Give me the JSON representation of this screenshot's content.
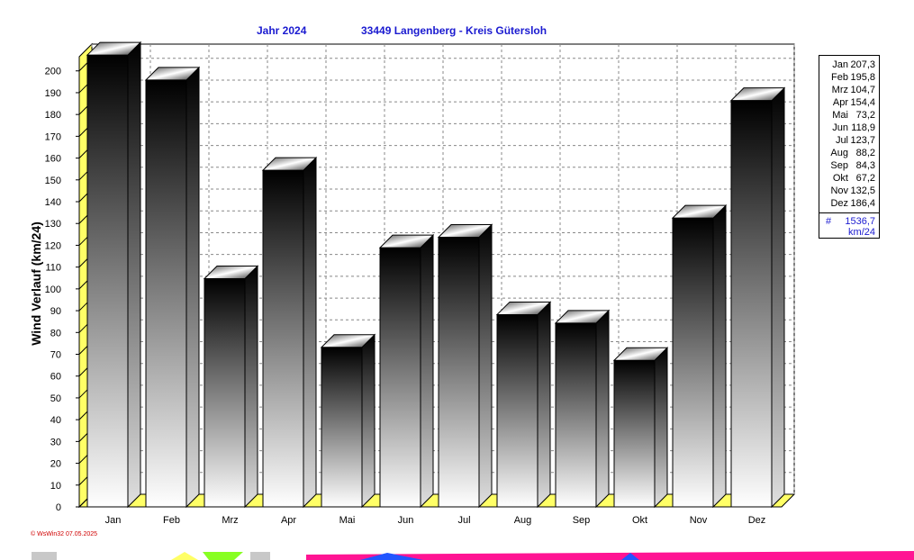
{
  "chart_data": {
    "type": "bar",
    "title_year": "Jahr  2024",
    "title_location": "33449 Langenberg - Kreis Gütersloh",
    "ylabel": "Wind Verlauf  (km/24)",
    "ylim": [
      0,
      200
    ],
    "y_ticks": [
      0,
      10,
      20,
      30,
      40,
      50,
      60,
      70,
      80,
      90,
      100,
      110,
      120,
      130,
      140,
      150,
      160,
      170,
      180,
      190,
      200
    ],
    "categories": [
      "Jan",
      "Feb",
      "Mrz",
      "Apr",
      "Mai",
      "Jun",
      "Jul",
      "Aug",
      "Sep",
      "Okt",
      "Nov",
      "Dez"
    ],
    "values": [
      207.3,
      195.8,
      104.7,
      154.4,
      73.2,
      118.9,
      123.7,
      88.2,
      84.3,
      67.2,
      132.5,
      186.4
    ],
    "grid": true,
    "legend": {
      "placement": "right",
      "entries": [
        {
          "month": "Jan",
          "value": "207,3"
        },
        {
          "month": "Feb",
          "value": "195,8"
        },
        {
          "month": "Mrz",
          "value": "104,7"
        },
        {
          "month": "Apr",
          "value": "154,4"
        },
        {
          "month": "Mai",
          "value": "73,2"
        },
        {
          "month": "Jun",
          "value": "118,9"
        },
        {
          "month": "Jul",
          "value": "123,7"
        },
        {
          "month": "Aug",
          "value": "88,2"
        },
        {
          "month": "Sep",
          "value": "84,3"
        },
        {
          "month": "Okt",
          "value": "67,2"
        },
        {
          "month": "Nov",
          "value": "132,5"
        },
        {
          "month": "Dez",
          "value": "186,4"
        }
      ],
      "total_symbol": "#",
      "total_value": "1536,7",
      "total_unit": "km/24"
    },
    "credit": "© WsWin32  07.05.2025",
    "colors": {
      "title": "#1a1ad0",
      "floor": "#ffff66",
      "bar_top": "#000000",
      "bar_bottom": "#ffffff",
      "grid": "#888888"
    }
  }
}
